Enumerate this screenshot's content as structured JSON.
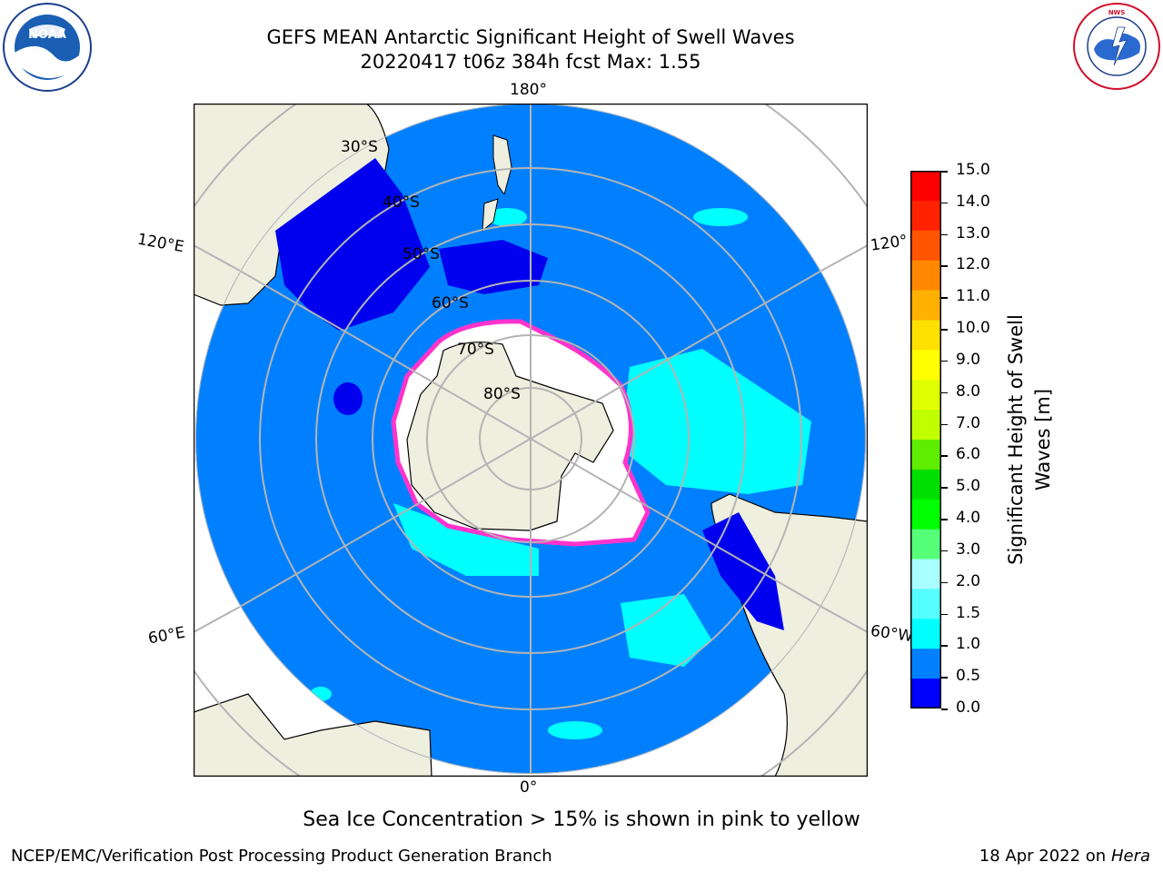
{
  "title": {
    "line1": "GEFS MEAN Antarctic Significant Height of Swell Waves",
    "line2": "20220417 t06z 384h fcst   Max: 1.55"
  },
  "map": {
    "projection": "south-polar stereographic",
    "longitude_labels": {
      "top": "180°",
      "upper_left": "120°E",
      "upper_right": "120°",
      "lower_left": "60°E",
      "lower_right": "60°W",
      "bottom": "0°"
    },
    "latitude_labels": [
      "30°S",
      "40°S",
      "50°S",
      "60°S",
      "70°S",
      "80°S"
    ],
    "colors": {
      "ocean_fill": "#0080ff",
      "land": "#efefdf",
      "ice_shelf": "#ffffff",
      "sea_ice_edge": "#ff33cc",
      "low_swell": "#0000ee",
      "mid_swell": "#00ffff",
      "grid": "#b4b4b4"
    }
  },
  "colorbar": {
    "label_line1": "Significant Height of Swell",
    "label_line2": "Waves [m]",
    "ticks": [
      "15.0",
      "14.0",
      "13.0",
      "12.0",
      "11.0",
      "10.0",
      "9.0",
      "8.0",
      "7.0",
      "6.0",
      "5.0",
      "4.0",
      "3.0",
      "2.0",
      "1.5",
      "1.0",
      "0.5",
      "0.0"
    ],
    "segment_colors": [
      "#ff0000",
      "#ff2200",
      "#ff5500",
      "#ff8800",
      "#ffb000",
      "#ffe000",
      "#ffff00",
      "#e0ff00",
      "#c0ff00",
      "#60ee00",
      "#00e000",
      "#00ff00",
      "#55ff77",
      "#aaffff",
      "#55ffff",
      "#00ffff",
      "#0080ff",
      "#0000ff"
    ]
  },
  "note": "Sea Ice Concentration > 15% is shown in pink to yellow",
  "footer": {
    "left": "NCEP/EMC/Verification Post Processing Product Generation Branch",
    "right_prefix": "18 Apr 2022 on ",
    "right_host": "Hera"
  },
  "logos": {
    "left": "NOAA",
    "right_text": "NATIONAL WEATHER SERVICE"
  }
}
